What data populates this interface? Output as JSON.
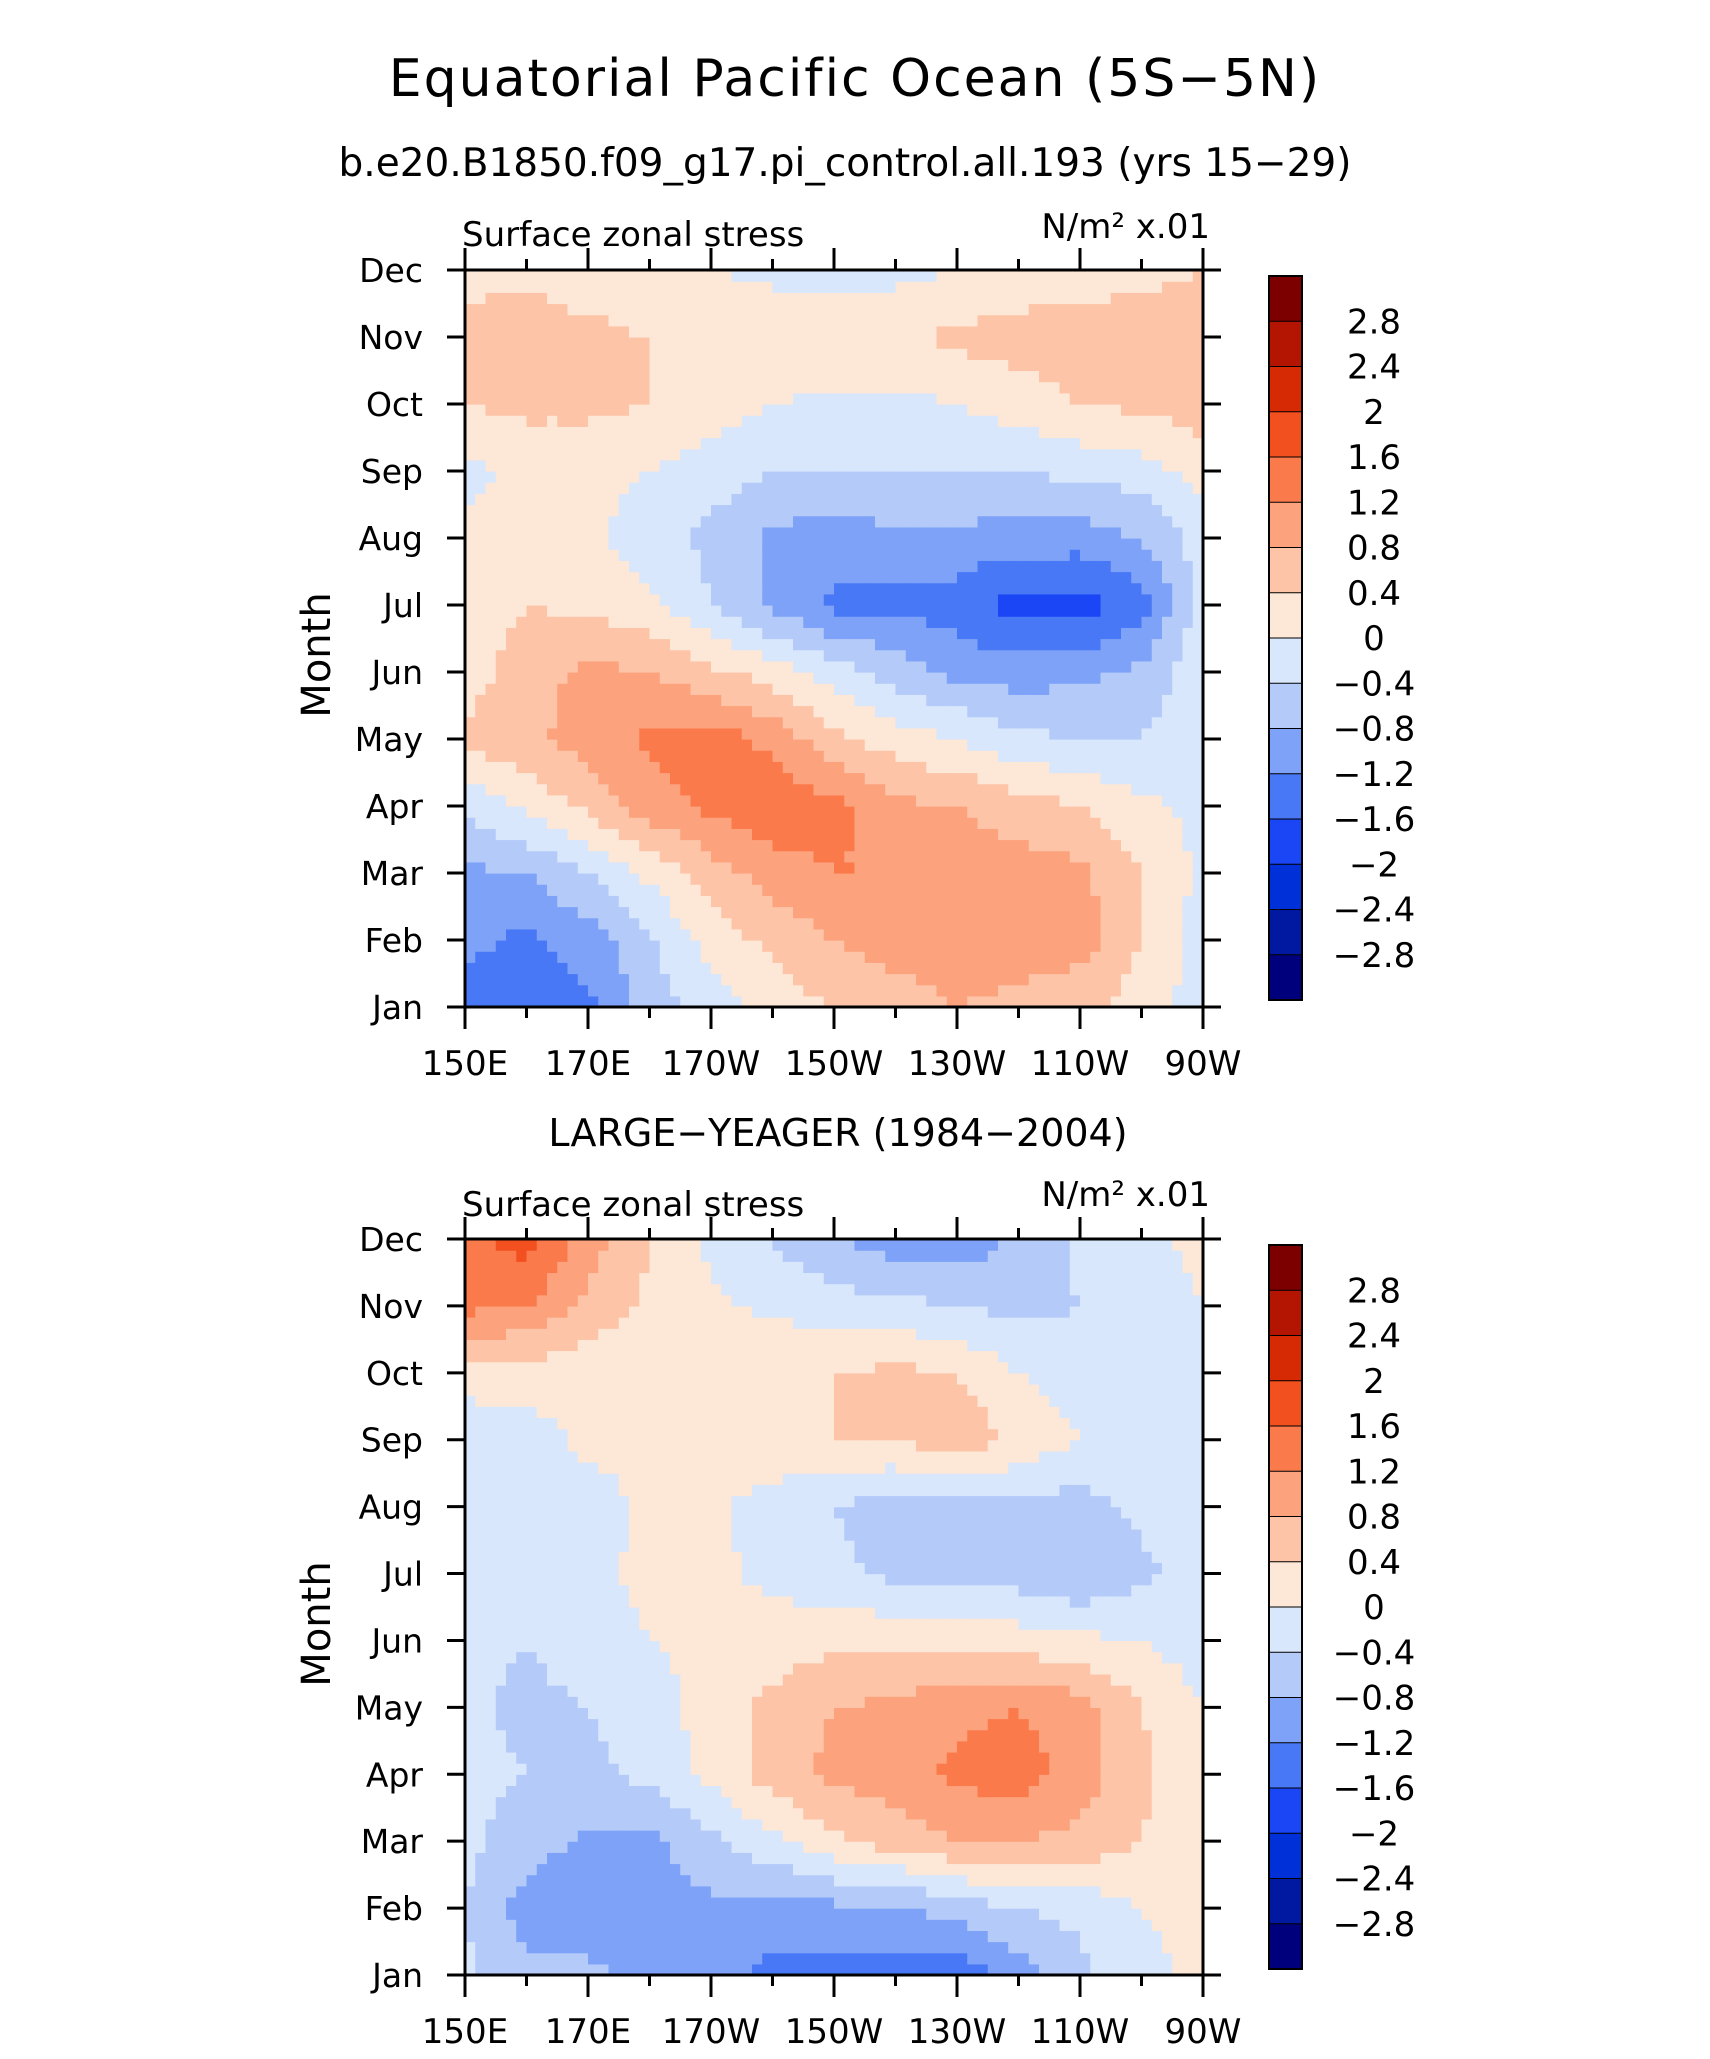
{
  "figure": {
    "title": "Equatorial Pacific Ocean (5S−5N)",
    "subtitle": "b.e20.B1850.f09_g17.pi_control.all.193 (yrs 15−29)"
  },
  "colorbar": {
    "levels": [
      -2.8,
      -2.4,
      -2,
      -1.6,
      -1.2,
      -0.8,
      -0.4,
      0,
      0.4,
      0.8,
      1.2,
      1.6,
      2,
      2.4,
      2.8
    ],
    "labels": [
      "2.8",
      "2.4",
      "2",
      "1.6",
      "1.2",
      "0.8",
      "0.4",
      "0",
      "−0.4",
      "−0.8",
      "−1.2",
      "−1.6",
      "−2",
      "−2.4",
      "−2.8"
    ],
    "colors": [
      "#00007d",
      "#0019a0",
      "#0030d8",
      "#1a46f6",
      "#4878f6",
      "#7ea2f8",
      "#b4caf9",
      "#d8e7fc",
      "#fde7d7",
      "#fdc4a8",
      "#fca27c",
      "#fb7a4c",
      "#f2501e",
      "#d62a04",
      "#b41402",
      "#7d0000"
    ]
  },
  "chart_data": [
    {
      "type": "heatmap",
      "panel_title": "",
      "left_label": "Surface zonal stress",
      "right_label_units": "N/m² x.01",
      "xlabel": "",
      "ylabel": "Month",
      "x_ticks": [
        "150E",
        "170E",
        "170W",
        "150W",
        "130W",
        "110W",
        "90W"
      ],
      "x": [
        150,
        160,
        170,
        180,
        190,
        200,
        210,
        220,
        230,
        240,
        250,
        260,
        270
      ],
      "y": [
        "Jan",
        "Feb",
        "Mar",
        "Apr",
        "May",
        "Jun",
        "Jul",
        "Aug",
        "Sep",
        "Oct",
        "Nov",
        "Dec"
      ],
      "xlim": [
        150,
        270
      ],
      "unit_note": "degrees east",
      "z": [
        [
          -1.3,
          -1.5,
          -1.3,
          -0.6,
          -0.2,
          0.2,
          0.4,
          0.6,
          0.8,
          0.7,
          0.5,
          0.2,
          -0.2
        ],
        [
          -1.1,
          -1.3,
          -1.0,
          -0.5,
          0.2,
          0.5,
          0.8,
          1.0,
          1.0,
          1.0,
          1.0,
          0.4,
          -0.2
        ],
        [
          -0.9,
          -0.8,
          -0.4,
          0.1,
          0.6,
          1.0,
          1.2,
          1.2,
          1.0,
          1.0,
          0.9,
          0.4,
          -0.1
        ],
        [
          -0.3,
          0.1,
          0.5,
          1.0,
          1.3,
          1.5,
          1.3,
          0.9,
          0.8,
          0.6,
          0.4,
          0.1,
          -0.1
        ],
        [
          0.5,
          0.7,
          1.0,
          1.3,
          1.4,
          1.1,
          0.5,
          0.2,
          0.0,
          -0.3,
          -0.4,
          -0.4,
          -0.1
        ],
        [
          0.2,
          0.6,
          0.9,
          0.8,
          0.5,
          0.2,
          -0.2,
          -0.6,
          -0.9,
          -1.0,
          -0.9,
          -0.7,
          -0.1
        ],
        [
          0.2,
          0.4,
          0.3,
          0.1,
          -0.4,
          -0.9,
          -1.3,
          -1.3,
          -1.4,
          -1.8,
          -1.8,
          -1.4,
          -0.2
        ],
        [
          0.1,
          0.2,
          0.1,
          -0.2,
          -0.5,
          -0.9,
          -1.0,
          -0.9,
          -0.9,
          -1.0,
          -1.0,
          -0.8,
          -0.2
        ],
        [
          -0.1,
          0.1,
          0.1,
          0.0,
          -0.2,
          -0.4,
          -0.4,
          -0.4,
          -0.4,
          -0.4,
          -0.3,
          -0.2,
          0.2
        ],
        [
          0.4,
          0.5,
          0.5,
          0.4,
          0.2,
          0.0,
          -0.1,
          -0.1,
          0.0,
          0.2,
          0.4,
          0.5,
          0.6
        ],
        [
          0.5,
          0.6,
          0.5,
          0.4,
          0.3,
          0.3,
          0.4,
          0.3,
          0.5,
          0.6,
          0.6,
          0.6,
          0.6
        ],
        [
          0.3,
          0.3,
          0.2,
          0.1,
          0.0,
          -0.1,
          -0.2,
          -0.1,
          0.0,
          0.1,
          0.2,
          0.3,
          0.4
        ]
      ]
    },
    {
      "type": "heatmap",
      "panel_title": "LARGE−YEAGER (1984−2004)",
      "left_label": "Surface zonal stress",
      "right_label_units": "N/m² x.01",
      "xlabel": "",
      "ylabel": "Month",
      "x_ticks": [
        "150E",
        "170E",
        "170W",
        "150W",
        "130W",
        "110W",
        "90W"
      ],
      "x": [
        150,
        160,
        170,
        180,
        190,
        200,
        210,
        220,
        230,
        240,
        250,
        260,
        270
      ],
      "y": [
        "Jan",
        "Feb",
        "Mar",
        "Apr",
        "May",
        "Jun",
        "Jul",
        "Aug",
        "Sep",
        "Oct",
        "Nov",
        "Dec"
      ],
      "xlim": [
        150,
        270
      ],
      "unit_note": "degrees east",
      "z": [
        [
          -0.3,
          -0.7,
          -0.7,
          -0.9,
          -1.0,
          -1.3,
          -1.4,
          -1.4,
          -1.5,
          -1.0,
          -0.5,
          -0.1,
          0.1
        ],
        [
          -0.4,
          -1.0,
          -1.1,
          -1.0,
          -0.9,
          -1.0,
          -0.9,
          -0.9,
          -0.6,
          -0.4,
          -0.3,
          0.0,
          0.1
        ],
        [
          -0.3,
          -0.6,
          -0.9,
          -0.9,
          -0.5,
          -0.1,
          0.3,
          0.6,
          0.8,
          0.8,
          0.7,
          0.4,
          0.1
        ],
        [
          -0.3,
          -0.4,
          -0.5,
          -0.3,
          0.1,
          0.6,
          0.9,
          1.0,
          1.3,
          1.4,
          1.0,
          0.5,
          0.1
        ],
        [
          -0.3,
          -0.5,
          -0.4,
          -0.2,
          0.2,
          0.5,
          0.8,
          0.9,
          1.1,
          1.2,
          1.0,
          0.4,
          0.0
        ],
        [
          -0.3,
          -0.4,
          -0.2,
          0.0,
          0.1,
          0.2,
          0.3,
          0.3,
          0.3,
          0.2,
          0.1,
          0.0,
          -0.2
        ],
        [
          -0.3,
          -0.3,
          -0.1,
          0.1,
          0.1,
          -0.1,
          -0.3,
          -0.5,
          -0.5,
          -0.6,
          -0.8,
          -0.5,
          -0.2
        ],
        [
          -0.4,
          -0.4,
          -0.2,
          0.1,
          0.1,
          -0.2,
          -0.4,
          -0.6,
          -0.5,
          -0.5,
          -0.6,
          -0.3,
          -0.2
        ],
        [
          -0.3,
          -0.2,
          0.1,
          0.1,
          0.2,
          0.3,
          0.4,
          0.4,
          0.7,
          0.3,
          0.0,
          -0.1,
          -0.1
        ],
        [
          0.2,
          0.2,
          0.1,
          0.1,
          0.1,
          0.4,
          0.4,
          0.5,
          0.4,
          0.0,
          -0.2,
          -0.2,
          -0.1
        ],
        [
          1.3,
          1.2,
          0.7,
          0.3,
          0.1,
          -0.1,
          -0.2,
          -0.3,
          -0.4,
          -0.5,
          -0.4,
          -0.2,
          0.0
        ],
        [
          1.4,
          1.8,
          1.0,
          0.4,
          -0.1,
          -0.4,
          -0.8,
          -1.0,
          -1.1,
          -0.7,
          -0.3,
          -0.1,
          0.1
        ]
      ]
    }
  ]
}
